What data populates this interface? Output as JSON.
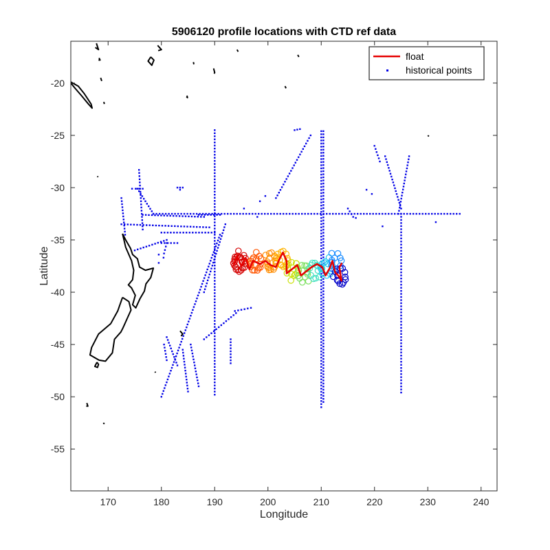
{
  "chart_data": {
    "type": "scatter",
    "title": "5906120 profile locations with CTD ref data",
    "xlabel": "Longitude",
    "ylabel": "Latitude",
    "xlim": [
      163,
      243
    ],
    "ylim": [
      -59,
      -16
    ],
    "xticks": [
      170,
      180,
      190,
      200,
      210,
      220,
      230,
      240
    ],
    "yticks": [
      -20,
      -25,
      -30,
      -35,
      -40,
      -45,
      -50,
      -55
    ],
    "grid": false,
    "legend_position": "top-right",
    "colors": {
      "float": "#e60000",
      "historical": "#0000e6",
      "coast": "#000000"
    },
    "legend": [
      {
        "label": "float",
        "style": "line",
        "color": "#e60000"
      },
      {
        "label": "historical points",
        "style": "dot",
        "color": "#0000e6"
      }
    ],
    "series": [
      {
        "name": "float",
        "style": "line",
        "points": [
          [
            193.5,
            -37.5
          ],
          [
            194.2,
            -36.5
          ],
          [
            195,
            -37.5
          ],
          [
            195.8,
            -36.7
          ],
          [
            196.5,
            -37.8
          ],
          [
            197.2,
            -37.0
          ],
          [
            198.5,
            -37.3
          ],
          [
            199.5,
            -37.0
          ],
          [
            200.5,
            -37.4
          ],
          [
            201.5,
            -37.6
          ],
          [
            202.2,
            -36.8
          ],
          [
            202.8,
            -36.2
          ],
          [
            203.5,
            -37.0
          ],
          [
            203.5,
            -38.2
          ],
          [
            204.5,
            -37.8
          ],
          [
            205.5,
            -37.4
          ],
          [
            206.2,
            -38.4
          ],
          [
            207.2,
            -38.0
          ],
          [
            208.2,
            -37.6
          ],
          [
            209.2,
            -37.3
          ],
          [
            210.2,
            -37.6
          ],
          [
            210.8,
            -38.4
          ],
          [
            211.6,
            -37.7
          ],
          [
            212.1,
            -37.0
          ],
          [
            212.6,
            -38.1
          ],
          [
            213.2,
            -38.4
          ],
          [
            213.8,
            -38.9
          ],
          [
            213.4,
            -37.6
          ],
          [
            213.9,
            -37.2
          ]
        ]
      },
      {
        "name": "historical points",
        "style": "dot",
        "segments": [
          [
            [
              190,
              -24.5
            ],
            [
              190,
              -49.8
            ]
          ],
          [
            [
              210,
              -24.6
            ],
            [
              210,
              -51.0
            ]
          ],
          [
            [
              210.4,
              -24.6
            ],
            [
              210.4,
              -50.5
            ]
          ],
          [
            [
              225,
              -32.5
            ],
            [
              225,
              -49.6
            ]
          ],
          [
            [
              178.5,
              -32.5
            ],
            [
              236,
              -32.5
            ]
          ],
          [
            [
              172.5,
              -33.5
            ],
            [
              189,
              -33.8
            ]
          ],
          [
            [
              176.5,
              -32.6
            ],
            [
              188,
              -32.8
            ]
          ],
          [
            [
              180,
              -34.3
            ],
            [
              190,
              -34.3
            ]
          ],
          [
            [
              180,
              -35.3
            ],
            [
              183,
              -35.3
            ]
          ],
          [
            [
              175.5,
              -30.1
            ],
            [
              178.5,
              -32.5
            ]
          ],
          [
            [
              174.5,
              -30.1
            ],
            [
              176.5,
              -30.1
            ]
          ],
          [
            [
              175.8,
              -28.3
            ],
            [
              176.5,
              -34.0
            ]
          ],
          [
            [
              172.5,
              -31.0
            ],
            [
              173.2,
              -34.5
            ]
          ],
          [
            [
              175,
              -36.0
            ],
            [
              181,
              -35.0
            ]
          ],
          [
            [
              180.5,
              -36.3
            ],
            [
              181,
              -35.3
            ]
          ],
          [
            [
              191,
              -34.5
            ],
            [
              180,
              -50.0
            ]
          ],
          [
            [
              192,
              -33.5
            ],
            [
              188,
              -40.0
            ]
          ],
          [
            [
              196.8,
              -41.5
            ],
            [
              193.8,
              -41.8
            ]
          ],
          [
            [
              194,
              -42.0
            ],
            [
              188,
              -44.5
            ]
          ],
          [
            [
              185.5,
              -45.0
            ],
            [
              187,
              -49.0
            ]
          ],
          [
            [
              184,
              -45.5
            ],
            [
              185,
              -49.5
            ]
          ],
          [
            [
              181,
              -44.3
            ],
            [
              183,
              -47.0
            ]
          ],
          [
            [
              180.5,
              -45.0
            ],
            [
              181,
              -46.5
            ]
          ],
          [
            [
              193,
              -44.5
            ],
            [
              193,
              -46.8
            ]
          ],
          [
            [
              226.5,
              -27.0
            ],
            [
              224.5,
              -32.5
            ]
          ],
          [
            [
              222,
              -27.0
            ],
            [
              225,
              -32.0
            ]
          ],
          [
            [
              220,
              -26.0
            ],
            [
              221,
              -27.5
            ]
          ],
          [
            [
              208,
              -25.0
            ],
            [
              201.5,
              -31.0
            ]
          ],
          [
            [
              205,
              -24.5
            ],
            [
              206,
              -24.4
            ]
          ],
          [
            [
              216,
              -32.8
            ],
            [
              215,
              -32.0
            ]
          ],
          [
            [
              183,
              -30.0
            ],
            [
              184,
              -30.0
            ]
          ],
          [
            [
              187,
              -32.6
            ],
            [
              191,
              -32.6
            ]
          ]
        ],
        "points": [
          [
            179.5,
            -36.4
          ],
          [
            180.4,
            -36.7
          ],
          [
            179.5,
            -37.2
          ],
          [
            195.5,
            -32.0
          ],
          [
            198,
            -32.8
          ],
          [
            218.5,
            -30.2
          ],
          [
            219.5,
            -30.6
          ],
          [
            221.5,
            -33.7
          ],
          [
            231.5,
            -33.3
          ],
          [
            198.5,
            -31.3
          ],
          [
            199.5,
            -30.8
          ],
          [
            216.5,
            -32.9
          ],
          [
            183.5,
            -30.2
          ]
        ]
      },
      {
        "name": "float_profiles",
        "style": "circles",
        "clusters": [
          {
            "lon": 194.5,
            "lat": -37.1,
            "color": "#d40000",
            "n": 22
          },
          {
            "lon": 197.5,
            "lat": -37.2,
            "color": "#ff5500",
            "n": 16
          },
          {
            "lon": 200.5,
            "lat": -37.2,
            "color": "#ff8c00",
            "n": 16
          },
          {
            "lon": 202.8,
            "lat": -37.0,
            "color": "#ffb300",
            "n": 14
          },
          {
            "lon": 204.8,
            "lat": -37.9,
            "color": "#c8e000",
            "n": 12
          },
          {
            "lon": 206.8,
            "lat": -38.1,
            "color": "#7de060",
            "n": 12
          },
          {
            "lon": 208.8,
            "lat": -37.8,
            "color": "#40e0c0",
            "n": 12
          },
          {
            "lon": 210.8,
            "lat": -37.6,
            "color": "#20c8f0",
            "n": 12
          },
          {
            "lon": 212.6,
            "lat": -37.2,
            "color": "#1a8cff",
            "n": 12
          },
          {
            "lon": 213.6,
            "lat": -38.6,
            "color": "#0000c8",
            "n": 14
          }
        ]
      },
      {
        "name": "coastline",
        "style": "outline",
        "polylines": [
          [
            [
              172.7,
              -34.4
            ],
            [
              173.3,
              -35.0
            ],
            [
              174.2,
              -35.8
            ],
            [
              174.6,
              -36.4
            ],
            [
              175.5,
              -36.8
            ],
            [
              175.9,
              -37.6
            ],
            [
              177.0,
              -37.9
            ],
            [
              178.5,
              -37.7
            ],
            [
              178.0,
              -38.6
            ],
            [
              177.1,
              -39.2
            ],
            [
              176.8,
              -39.9
            ],
            [
              176.0,
              -40.6
            ],
            [
              175.2,
              -41.5
            ],
            [
              174.6,
              -41.2
            ],
            [
              175.1,
              -40.3
            ],
            [
              174.4,
              -39.6
            ],
            [
              173.8,
              -39.3
            ],
            [
              174.6,
              -38.8
            ],
            [
              174.8,
              -37.9
            ],
            [
              174.4,
              -37.0
            ],
            [
              173.3,
              -35.7
            ],
            [
              172.7,
              -34.4
            ]
          ],
          [
            [
              172.7,
              -40.5
            ],
            [
              173.9,
              -40.9
            ],
            [
              174.3,
              -41.7
            ],
            [
              173.5,
              -42.6
            ],
            [
              172.8,
              -43.4
            ],
            [
              172.4,
              -43.8
            ],
            [
              171.2,
              -44.5
            ],
            [
              170.8,
              -45.8
            ],
            [
              169.5,
              -46.6
            ],
            [
              168.3,
              -46.5
            ],
            [
              166.6,
              -46.0
            ],
            [
              166.9,
              -45.3
            ],
            [
              168.2,
              -44.0
            ],
            [
              170.5,
              -43.0
            ],
            [
              171.8,
              -41.8
            ],
            [
              172.7,
              -40.5
            ]
          ],
          [
            [
              167.9,
              -46.7
            ],
            [
              168.2,
              -46.9
            ],
            [
              168.0,
              -47.2
            ],
            [
              167.5,
              -47.1
            ],
            [
              167.9,
              -46.7
            ]
          ],
          [
            [
              163,
              -19.9
            ],
            [
              164.4,
              -20.3
            ],
            [
              165.5,
              -21.0
            ],
            [
              166.8,
              -22.0
            ],
            [
              167.0,
              -22.4
            ],
            [
              166.3,
              -22.0
            ],
            [
              165.0,
              -21.2
            ],
            [
              163.8,
              -20.5
            ],
            [
              163,
              -20.0
            ]
          ],
          [
            [
              167.8,
              -16.2
            ],
            [
              168.2,
              -16.8
            ],
            [
              167.6,
              -16.6
            ]
          ],
          [
            [
              168.3,
              -17.6
            ],
            [
              168.5,
              -17.8
            ],
            [
              168.2,
              -17.8
            ]
          ],
          [
            [
              178.0,
              -17.5
            ],
            [
              178.6,
              -17.8
            ],
            [
              178.2,
              -18.3
            ],
            [
              177.5,
              -17.9
            ],
            [
              178.0,
              -17.5
            ]
          ],
          [
            [
              179.3,
              -16.4
            ],
            [
              180.0,
              -16.8
            ],
            [
              179.4,
              -16.9
            ]
          ],
          [
            [
              184.8,
              -21.2
            ],
            [
              184.9,
              -21.4
            ],
            [
              184.7,
              -21.3
            ]
          ],
          [
            [
              189.8,
              -18.6
            ],
            [
              190.0,
              -19.0
            ],
            [
              189.9,
              -19.1
            ]
          ],
          [
            [
              186.0,
              -18.0
            ],
            [
              186.1,
              -18.2
            ]
          ],
          [
            [
              194.2,
              -16.8
            ],
            [
              194.4,
              -17.0
            ]
          ],
          [
            [
              205.6,
              -17.3
            ],
            [
              205.8,
              -17.5
            ]
          ],
          [
            [
              203.2,
              -20.3
            ],
            [
              203.4,
              -20.5
            ]
          ],
          [
            [
              230.0,
              -25.0
            ],
            [
              230.2,
              -25.1
            ]
          ],
          [
            [
              168.6,
              -19.5
            ],
            [
              168.8,
              -19.8
            ]
          ],
          [
            [
              169.2,
              -21.8
            ],
            [
              169.3,
              -22.0
            ]
          ],
          [
            [
              183.5,
              -43.7
            ],
            [
              184.0,
              -44.0
            ],
            [
              183.7,
              -44.2
            ]
          ],
          [
            [
              166.0,
              -50.6
            ],
            [
              166.2,
              -50.9
            ],
            [
              165.9,
              -50.9
            ]
          ],
          [
            [
              169.1,
              -52.5
            ],
            [
              169.3,
              -52.6
            ]
          ],
          [
            [
              168.0,
              -28.9
            ],
            [
              168.1,
              -29.0
            ]
          ],
          [
            [
              178.8,
              -47.6
            ],
            [
              178.9,
              -47.7
            ]
          ]
        ]
      }
    ]
  }
}
